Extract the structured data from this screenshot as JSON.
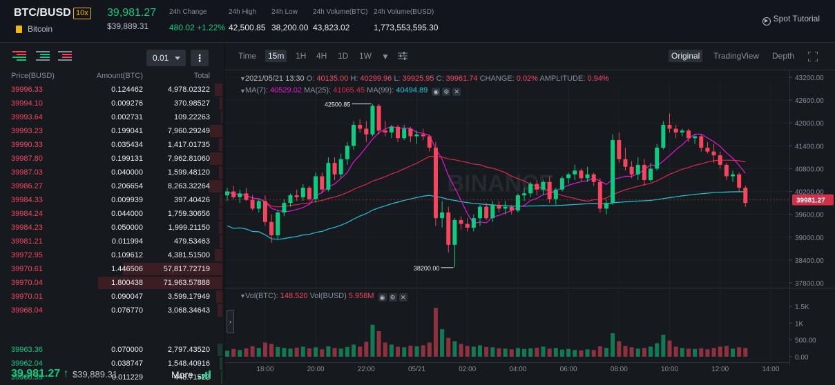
{
  "header": {
    "symbol": "BTC/BUSD",
    "leverage": "10x",
    "coin_name": "Bitcoin",
    "price": "39,981.27",
    "price_usd": "$39,889.31",
    "stats": [
      {
        "label": "24h Change",
        "value": "480.02 +1.22%",
        "tone": "green"
      },
      {
        "label": "24h High",
        "value": "42,500.85",
        "tone": ""
      },
      {
        "label": "24h Low",
        "value": "38,200.00",
        "tone": ""
      },
      {
        "label": "24h Volume(BTC)",
        "value": "43,823.02",
        "tone": ""
      },
      {
        "label": "24h Volume(BUSD)",
        "value": "1,773,553,595.30",
        "tone": ""
      }
    ],
    "tutorial": "Spot Tutorial"
  },
  "orderbook": {
    "tick_size": "0.01",
    "more_menu": "⋮",
    "headers": {
      "price": "Price(BUSD)",
      "amount": "Amount(BTC)",
      "total": "Total"
    },
    "asks": [
      {
        "price": "39996.33",
        "amount": "0.124462",
        "total": "4,978.02322",
        "depth": 0.06
      },
      {
        "price": "39994.10",
        "amount": "0.009276",
        "total": "370.98527",
        "depth": 0.02
      },
      {
        "price": "39993.64",
        "amount": "0.002731",
        "total": "109.22263",
        "depth": 0.01
      },
      {
        "price": "39993.23",
        "amount": "0.199041",
        "total": "7,960.29249",
        "depth": 0.1
      },
      {
        "price": "39990.33",
        "amount": "0.035434",
        "total": "1,417.01735",
        "depth": 0.03
      },
      {
        "price": "39987.80",
        "amount": "0.199131",
        "total": "7,962.81060",
        "depth": 0.1
      },
      {
        "price": "39987.03",
        "amount": "0.040000",
        "total": "1,599.48120",
        "depth": 0.03
      },
      {
        "price": "39986.27",
        "amount": "0.206654",
        "total": "8,263.32264",
        "depth": 0.11
      },
      {
        "price": "39984.33",
        "amount": "0.009939",
        "total": "397.40426",
        "depth": 0.02
      },
      {
        "price": "39984.24",
        "amount": "0.044000",
        "total": "1,759.30656",
        "depth": 0.03
      },
      {
        "price": "39984.23",
        "amount": "0.050000",
        "total": "1,999.21150",
        "depth": 0.03
      },
      {
        "price": "39981.21",
        "amount": "0.011994",
        "total": "479.53463",
        "depth": 0.02
      },
      {
        "price": "39972.95",
        "amount": "0.109612",
        "total": "4,381.51500",
        "depth": 0.06
      },
      {
        "price": "39970.61",
        "amount": "1.446506",
        "total": "57,817.72719",
        "depth": 0.8
      },
      {
        "price": "39970.04",
        "amount": "1.800438",
        "total": "71,963.57888",
        "depth": 1.0
      },
      {
        "price": "39970.01",
        "amount": "0.090047",
        "total": "3,599.17949",
        "depth": 0.05
      },
      {
        "price": "39968.04",
        "amount": "0.076770",
        "total": "3,068.34643",
        "depth": 0.04
      }
    ],
    "last_price": "39,981.27",
    "last_arrow": "↑",
    "last_price_usd": "$39,889.31",
    "more_label": "More",
    "bids": [
      {
        "price": "39963.36",
        "amount": "0.070000",
        "total": "2,797.43520",
        "depth": 0.04
      },
      {
        "price": "39962.04",
        "amount": "0.038747",
        "total": "1,548.40916",
        "depth": 0.02
      },
      {
        "price": "39960.39",
        "amount": "0.011229",
        "total": "448.71522",
        "depth": 0.01
      }
    ]
  },
  "chart_toolbar": {
    "timeframes": [
      "Time",
      "15m",
      "1H",
      "4H",
      "1D",
      "1W"
    ],
    "active_timeframe": "15m",
    "views": [
      "Original",
      "TradingView",
      "Depth"
    ],
    "active_view": "Original"
  },
  "legend": {
    "date": "2021/05/21 13:30",
    "o_label": "O:",
    "o": "40135.00",
    "h_label": "H:",
    "h": "40299.96",
    "l_label": "L:",
    "l": "39925.95",
    "c_label": "C:",
    "c": "39961.74",
    "change_label": "CHANGE:",
    "change": "0.02%",
    "amp_label": "AMPLITUDE:",
    "amp": "0.94%",
    "ma7_label": "MA(7):",
    "ma7": "40529.02",
    "ma25_label": "MA(25):",
    "ma25": "41065.45",
    "ma99_label": "MA(99):",
    "ma99": "40494.89",
    "vol_btc_label": "Vol(BTC):",
    "vol_btc": "148.520",
    "vol_busd_label": "Vol(BUSD)",
    "vol_busd": "5.958M",
    "max_label": "42500.85",
    "min_label": "38200.00",
    "current_price": "39981.27"
  },
  "colors": {
    "up": "#0ecb81",
    "down": "#f6465d",
    "ma7": "#e815d7",
    "ma25": "#e0294a",
    "ma99": "#26c6da"
  },
  "chart_data": {
    "type": "candlestick",
    "interval": "15m",
    "price_axis": [
      "43200.00",
      "42600.00",
      "42000.00",
      "41400.00",
      "40800.00",
      "40200.00",
      "39600.00",
      "39000.00",
      "38400.00",
      "37800.00"
    ],
    "price_ticks": [
      43200,
      42600,
      42000,
      41400,
      40800,
      40200,
      39600,
      39000,
      38400,
      37800
    ],
    "volume_axis": [
      "1.5K",
      "1K",
      "500.00",
      "0.00"
    ],
    "volume_ticks": [
      1500,
      1000,
      500,
      0
    ],
    "time_axis": [
      "18:00",
      "20:00",
      "22:00",
      "05/21",
      "02:00",
      "04:00",
      "06:00",
      "08:00",
      "10:00",
      "12:00",
      "14:00"
    ],
    "time_axis_index": [
      6,
      14,
      22,
      30,
      38,
      46,
      54,
      62,
      70,
      78,
      86
    ],
    "candles": [
      [
        40100,
        40300,
        39950,
        40200
      ],
      [
        40200,
        40350,
        40000,
        40050
      ],
      [
        40050,
        40250,
        39900,
        40150
      ],
      [
        40150,
        40300,
        39950,
        39980
      ],
      [
        39980,
        40100,
        39700,
        39750
      ],
      [
        39750,
        40000,
        39650,
        39950
      ],
      [
        39950,
        40100,
        39300,
        39400
      ],
      [
        39400,
        39600,
        38850,
        39050
      ],
      [
        39050,
        39700,
        38950,
        39650
      ],
      [
        39650,
        40000,
        39550,
        39900
      ],
      [
        39900,
        40150,
        39800,
        40100
      ],
      [
        40100,
        40250,
        39950,
        40050
      ],
      [
        40050,
        40400,
        39950,
        40300
      ],
      [
        40300,
        40350,
        39950,
        40000
      ],
      [
        40000,
        40700,
        39900,
        40600
      ],
      [
        40600,
        40700,
        40150,
        40250
      ],
      [
        40250,
        41100,
        40200,
        40950
      ],
      [
        40950,
        41100,
        40500,
        40650
      ],
      [
        40650,
        41200,
        40550,
        41050
      ],
      [
        41050,
        41500,
        40900,
        41400
      ],
      [
        41400,
        42050,
        41300,
        41950
      ],
      [
        41950,
        42100,
        41750,
        41850
      ],
      [
        41850,
        42050,
        41500,
        41700
      ],
      [
        41700,
        42500,
        41650,
        42450
      ],
      [
        42450,
        42500,
        41700,
        41800
      ],
      [
        41800,
        42050,
        41650,
        41750
      ],
      [
        41750,
        41950,
        41600,
        41900
      ],
      [
        41900,
        41950,
        41500,
        41600
      ],
      [
        41600,
        41950,
        41550,
        41850
      ],
      [
        41850,
        41900,
        41500,
        41650
      ],
      [
        41650,
        41800,
        41450,
        41700
      ],
      [
        41700,
        41850,
        41550,
        41650
      ],
      [
        41650,
        41700,
        41250,
        41350
      ],
      [
        41350,
        41500,
        39300,
        39500
      ],
      [
        39500,
        39950,
        39250,
        39650
      ],
      [
        39650,
        39800,
        38600,
        38800
      ],
      [
        38800,
        39500,
        38200,
        39450
      ],
      [
        39450,
        39550,
        39200,
        39350
      ],
      [
        39350,
        39500,
        39150,
        39250
      ],
      [
        39250,
        39600,
        39150,
        39500
      ],
      [
        39500,
        39850,
        39300,
        39800
      ],
      [
        39800,
        39900,
        39450,
        39500
      ],
      [
        39500,
        39950,
        39400,
        39850
      ],
      [
        39850,
        39950,
        39650,
        39750
      ],
      [
        39750,
        39950,
        39600,
        39800
      ],
      [
        39800,
        39850,
        39600,
        39700
      ],
      [
        39700,
        40150,
        39650,
        40100
      ],
      [
        40100,
        40300,
        39950,
        40150
      ],
      [
        40150,
        40450,
        40050,
        40400
      ],
      [
        40400,
        40500,
        40100,
        40250
      ],
      [
        40250,
        40500,
        40100,
        40450
      ],
      [
        40450,
        40600,
        39900,
        40000
      ],
      [
        40000,
        40300,
        39850,
        40250
      ],
      [
        40250,
        40600,
        40200,
        40550
      ],
      [
        40550,
        40700,
        40400,
        40650
      ],
      [
        40650,
        40900,
        40500,
        40750
      ],
      [
        40750,
        40800,
        40450,
        40550
      ],
      [
        40550,
        40850,
        40450,
        40650
      ],
      [
        40650,
        40700,
        40350,
        40450
      ],
      [
        40450,
        40550,
        39650,
        39750
      ],
      [
        39750,
        40000,
        39600,
        39900
      ],
      [
        39900,
        41700,
        39850,
        41550
      ],
      [
        41550,
        41750,
        40950,
        41050
      ],
      [
        41050,
        41350,
        40750,
        40850
      ],
      [
        40850,
        41000,
        40550,
        40650
      ],
      [
        40650,
        41100,
        40500,
        40900
      ],
      [
        40900,
        41050,
        40350,
        40500
      ],
      [
        40500,
        40950,
        40450,
        40800
      ],
      [
        40800,
        41450,
        40750,
        41350
      ],
      [
        41350,
        42050,
        41300,
        41950
      ],
      [
        41950,
        42250,
        41750,
        41850
      ],
      [
        41850,
        41950,
        41600,
        41750
      ],
      [
        41750,
        41850,
        41650,
        41800
      ],
      [
        41800,
        41850,
        41500,
        41600
      ],
      [
        41600,
        41700,
        41450,
        41650
      ],
      [
        41650,
        41700,
        41250,
        41350
      ],
      [
        41350,
        41500,
        41200,
        41250
      ],
      [
        41250,
        41450,
        40950,
        41150
      ],
      [
        41150,
        41250,
        40800,
        40900
      ],
      [
        40900,
        40950,
        40500,
        40600
      ],
      [
        40600,
        40750,
        40450,
        40650
      ],
      [
        40650,
        40700,
        40200,
        40300
      ],
      [
        40300,
        40350,
        39800,
        39900
      ]
    ],
    "volumes": [
      180,
      230,
      200,
      250,
      310,
      260,
      420,
      380,
      290,
      260,
      240,
      270,
      300,
      250,
      280,
      220,
      310,
      260,
      240,
      290,
      360,
      300,
      440,
      950,
      760,
      420,
      360,
      300,
      280,
      330,
      310,
      340,
      420,
      1450,
      820,
      560,
      460,
      380,
      320,
      300,
      340,
      290,
      280,
      250,
      240,
      220,
      260,
      230,
      250,
      270,
      300,
      240,
      260,
      210,
      230,
      200,
      190,
      220,
      200,
      310,
      260,
      700,
      460,
      320,
      280,
      240,
      260,
      300,
      400,
      650,
      480,
      300,
      260,
      240,
      230,
      250,
      220,
      260,
      300,
      320,
      240,
      280,
      260
    ]
  }
}
